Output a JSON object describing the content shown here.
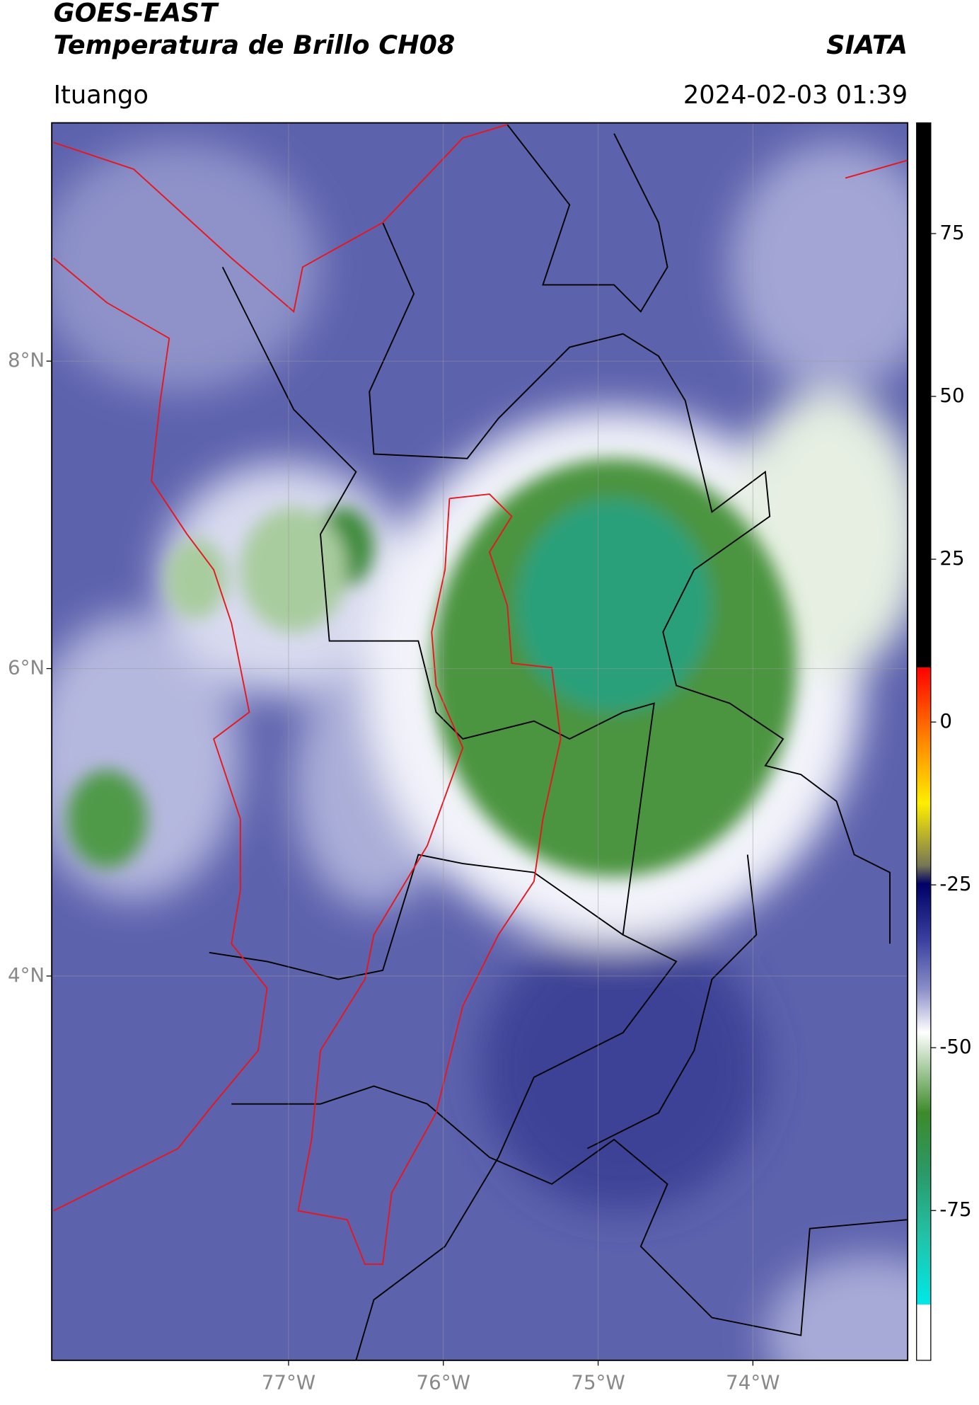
{
  "header": {
    "title": "GOES-EAST",
    "subtitle": "Temperatura de Brillo CH08",
    "source": "SIATA",
    "location": "Ituango",
    "datetime": "2024-02-03 01:39"
  },
  "map": {
    "lonlim": [
      -78.53,
      -73.0
    ],
    "latlim": [
      1.5,
      9.55
    ],
    "lon_ticks": [
      {
        "value": -77,
        "label": "77°W"
      },
      {
        "value": -76,
        "label": "76°W"
      },
      {
        "value": -75,
        "label": "75°W"
      },
      {
        "value": -74,
        "label": "74°W"
      }
    ],
    "lat_ticks": [
      {
        "value": 8,
        "label": "8°N"
      },
      {
        "value": 6,
        "label": "6°N"
      },
      {
        "value": 4,
        "label": "4°N"
      }
    ],
    "grid": true
  },
  "colorbar": {
    "lim": [
      -98,
      92
    ],
    "ticks": [
      75,
      50,
      25,
      0,
      -25,
      -50,
      -75
    ]
  }
}
